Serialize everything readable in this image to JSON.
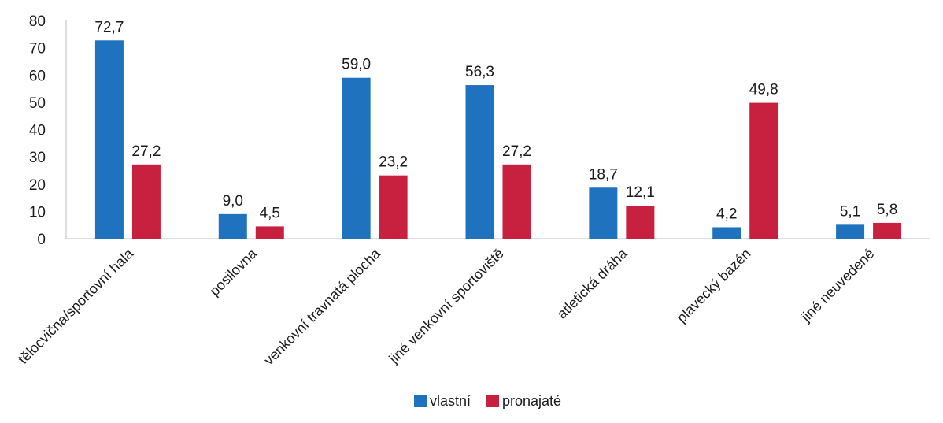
{
  "chart_data": {
    "type": "bar",
    "categories": [
      "tělocvična/sportovní hala",
      "posilovna",
      "venkovní travnatá plocha",
      "jiné venkovní sportoviště",
      "atletická dráha",
      "plavecký bazén",
      "jiné neuvedené"
    ],
    "series": [
      {
        "name": "vlastní",
        "color": "#1f73be",
        "values": [
          72.7,
          9.0,
          59.0,
          56.3,
          18.7,
          4.2,
          5.1
        ],
        "labels": [
          "72,7",
          "9,0",
          "59,0",
          "56,3",
          "18,7",
          "4,2",
          "5,1"
        ]
      },
      {
        "name": "pronajaté",
        "color": "#c8213f",
        "values": [
          27.2,
          4.5,
          23.2,
          27.2,
          12.1,
          49.8,
          5.8
        ],
        "labels": [
          "27,2",
          "4,5",
          "23,2",
          "27,2",
          "12,1",
          "49,8",
          "5,8"
        ]
      }
    ],
    "y_ticks": [
      "0",
      "10",
      "20",
      "30",
      "40",
      "50",
      "60",
      "70",
      "80"
    ],
    "ylim": [
      0,
      80
    ],
    "grid": false,
    "legend": "bottom-center"
  }
}
